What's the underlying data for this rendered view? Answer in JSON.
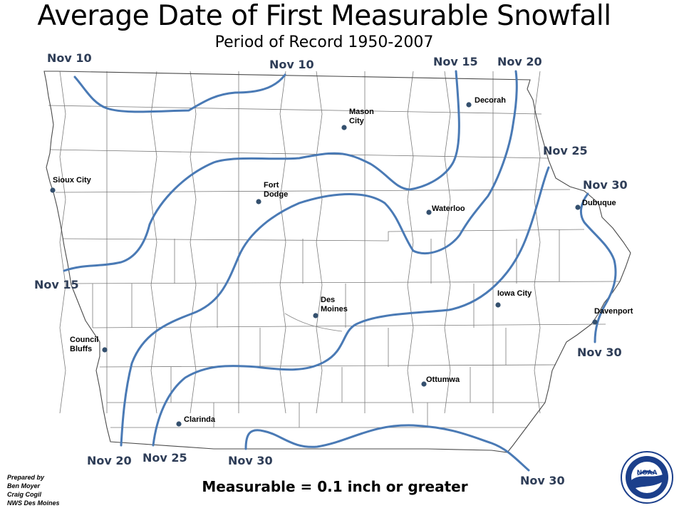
{
  "title": "Average Date of First Measurable Snowfall",
  "subtitle": "Period of Record 1950-2007",
  "note": "Measurable = 0.1 inch or greater",
  "credits": [
    "Prepared by",
    "Ben Moyer",
    "Craig Cogil",
    "NWS Des Moines"
  ],
  "colors": {
    "isoline": "#4a7ab5",
    "isoline_label": "#2e3d57",
    "city_dot": "#34506e",
    "county_border": "#7a7a7a"
  },
  "isolines": [
    {
      "id": "nov10",
      "label": "Nov 10"
    },
    {
      "id": "nov15",
      "label": "Nov 15"
    },
    {
      "id": "nov20",
      "label": "Nov 20"
    },
    {
      "id": "nov25",
      "label": "Nov 25"
    },
    {
      "id": "nov30",
      "label": "Nov 30"
    }
  ],
  "isoline_labels": [
    {
      "text": "Nov 10"
    },
    {
      "text": "Nov 10"
    },
    {
      "text": "Nov 15"
    },
    {
      "text": "Nov 20"
    },
    {
      "text": "Nov 25"
    },
    {
      "text": "Nov 30"
    },
    {
      "text": "Nov 15"
    },
    {
      "text": "Nov 30"
    },
    {
      "text": "Nov 20"
    },
    {
      "text": "Nov 25"
    },
    {
      "text": "Nov 30"
    },
    {
      "text": "Nov 30"
    }
  ],
  "cities": [
    {
      "name": "Decorah"
    },
    {
      "name": "Mason City"
    },
    {
      "name": "Sioux City"
    },
    {
      "name": "Fort Dodge"
    },
    {
      "name": "Waterloo"
    },
    {
      "name": "Dubuque"
    },
    {
      "name": "Des Moines"
    },
    {
      "name": "Iowa City"
    },
    {
      "name": "Davenport"
    },
    {
      "name": "Council Bluffs"
    },
    {
      "name": "Ottumwa"
    },
    {
      "name": "Clarinda"
    }
  ],
  "logo": {
    "text": "NOAA"
  }
}
